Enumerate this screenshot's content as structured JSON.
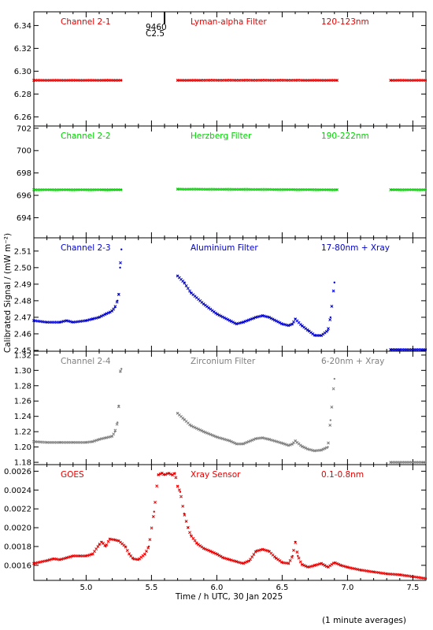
{
  "colors": {
    "red": "#e60000",
    "green": "#00d000",
    "blue": "#0000cc",
    "gray": "#808080",
    "axis": "#000000"
  },
  "figure": {
    "ylabel": "Calibrated Signal / (mW m⁻²)",
    "xlabel": "Time / h UTC, 30 Jan 2025",
    "footnote": "(1 minute averages)",
    "flare_label_1": "9460",
    "flare_label_2": "C2.5"
  },
  "chart_data": [
    {
      "type": "scatter",
      "color": "red",
      "labels": [
        "Channel 2-1",
        "Lyman-alpha Filter",
        "120-123nm"
      ],
      "xlim": [
        4.6,
        7.6
      ],
      "ylim": [
        6.252,
        6.352
      ],
      "yticks": [
        6.26,
        6.28,
        6.3,
        6.32,
        6.34
      ],
      "ytick_labels": [
        "6.26",
        "6.28",
        "6.30",
        "6.32",
        "6.34"
      ],
      "segments": [
        {
          "x": [
            4.6,
            5.27
          ],
          "y": [
            6.292,
            6.292
          ]
        },
        {
          "x": [
            5.7,
            6.92
          ],
          "y": [
            6.292,
            6.292
          ]
        },
        {
          "x": [
            7.33,
            7.6
          ],
          "y": [
            6.292,
            6.292
          ]
        }
      ]
    },
    {
      "type": "scatter",
      "color": "green",
      "labels": [
        "Channel 2-2",
        "Herzberg Filter",
        "190-222nm"
      ],
      "xlim": [
        4.6,
        7.6
      ],
      "ylim": [
        692.2,
        702.2
      ],
      "yticks": [
        694,
        696,
        698,
        700,
        702
      ],
      "ytick_labels": [
        "694",
        "696",
        "698",
        "700",
        "702"
      ],
      "segments": [
        {
          "x": [
            4.6,
            5.27
          ],
          "y": [
            696.5,
            696.5
          ]
        },
        {
          "x": [
            5.7,
            6.92
          ],
          "y": [
            696.55,
            696.5
          ]
        },
        {
          "x": [
            7.33,
            7.6
          ],
          "y": [
            696.5,
            696.5
          ]
        }
      ]
    },
    {
      "type": "scatter",
      "color": "blue",
      "labels": [
        "Channel 2-3",
        "Aluminium Filter",
        "17-80nm + Xray"
      ],
      "xlim": [
        4.6,
        7.6
      ],
      "ylim": [
        2.4495,
        2.518
      ],
      "yticks": [
        2.45,
        2.46,
        2.47,
        2.48,
        2.49,
        2.5,
        2.51
      ],
      "ytick_labels": [
        "2.45",
        "2.46",
        "2.47",
        "2.48",
        "2.49",
        "2.50",
        "2.51"
      ],
      "segments": [
        {
          "x": [
            4.6,
            4.7,
            4.8,
            4.85,
            4.9,
            5.0,
            5.05,
            5.1,
            5.15,
            5.18,
            5.2,
            5.22,
            5.24,
            5.25,
            5.26,
            5.27
          ],
          "y": [
            2.468,
            2.467,
            2.467,
            2.468,
            2.467,
            2.468,
            2.469,
            2.47,
            2.472,
            2.473,
            2.474,
            2.476,
            2.48,
            2.484,
            2.5,
            2.511
          ]
        },
        {
          "x": [
            5.7,
            5.75,
            5.8,
            5.9,
            6.0,
            6.1,
            6.15,
            6.2,
            6.3,
            6.35,
            6.4,
            6.5,
            6.55,
            6.58,
            6.6,
            6.65,
            6.7,
            6.75,
            6.8,
            6.85,
            6.87,
            6.9
          ],
          "y": [
            2.495,
            2.491,
            2.485,
            2.478,
            2.472,
            2.468,
            2.466,
            2.467,
            2.47,
            2.471,
            2.47,
            2.466,
            2.465,
            2.466,
            2.469,
            2.465,
            2.462,
            2.459,
            2.459,
            2.462,
            2.47,
            2.491
          ]
        },
        {
          "x": [
            7.33,
            7.6
          ],
          "y": [
            2.4505,
            2.4505
          ]
        }
      ]
    },
    {
      "type": "scatter",
      "color": "gray",
      "labels": [
        "Channel 2-4",
        "Zirconium Filter",
        "6-20nm + Xray"
      ],
      "xlim": [
        4.6,
        7.6
      ],
      "ylim": [
        1.177,
        1.325
      ],
      "yticks": [
        1.18,
        1.2,
        1.22,
        1.24,
        1.26,
        1.28,
        1.3,
        1.32
      ],
      "ytick_labels": [
        "1.18",
        "1.20",
        "1.22",
        "1.24",
        "1.26",
        "1.28",
        "1.30",
        "1.32"
      ],
      "segments": [
        {
          "x": [
            4.6,
            4.7,
            4.8,
            4.9,
            5.0,
            5.05,
            5.1,
            5.15,
            5.2,
            5.22,
            5.24,
            5.25,
            5.26,
            5.27
          ],
          "y": [
            1.207,
            1.206,
            1.206,
            1.206,
            1.206,
            1.207,
            1.21,
            1.212,
            1.214,
            1.22,
            1.232,
            1.254,
            1.298,
            1.302
          ]
        },
        {
          "x": [
            5.7,
            5.75,
            5.8,
            5.9,
            6.0,
            6.1,
            6.15,
            6.2,
            6.3,
            6.35,
            6.4,
            6.5,
            6.55,
            6.58,
            6.6,
            6.65,
            6.7,
            6.75,
            6.8,
            6.85,
            6.87,
            6.9
          ],
          "y": [
            1.244,
            1.236,
            1.228,
            1.22,
            1.213,
            1.208,
            1.204,
            1.204,
            1.211,
            1.212,
            1.21,
            1.205,
            1.202,
            1.204,
            1.208,
            1.201,
            1.197,
            1.195,
            1.196,
            1.2,
            1.235,
            1.289
          ]
        },
        {
          "x": [
            7.33,
            7.6
          ],
          "y": [
            1.18,
            1.18
          ]
        }
      ]
    },
    {
      "type": "scatter",
      "color": "red",
      "labels": [
        "GOES",
        "Xray Sensor",
        "0.1-0.8nm"
      ],
      "xlim": [
        4.6,
        7.6
      ],
      "ylim": [
        0.00144,
        0.00267
      ],
      "yticks": [
        0.0016,
        0.0018,
        0.002,
        0.0022,
        0.0024,
        0.0026
      ],
      "ytick_labels": [
        "0.0016",
        "0.0018",
        "0.0020",
        "0.0022",
        "0.0024",
        "0.0026"
      ],
      "xticks": [
        5.0,
        5.5,
        6.0,
        6.5,
        7.0,
        7.5
      ],
      "xtick_labels": [
        "5.0",
        "5.5",
        "6.0",
        "6.5",
        "7.0",
        "7.5"
      ],
      "segments": [
        {
          "x": [
            4.6,
            4.7,
            4.75,
            4.8,
            4.85,
            4.9,
            4.95,
            5.0,
            5.05,
            5.1,
            5.12,
            5.15,
            5.18,
            5.22,
            5.25,
            5.3,
            5.33,
            5.36,
            5.4,
            5.45,
            5.48,
            5.52,
            5.55,
            5.58,
            5.6,
            5.63,
            5.66,
            5.68,
            5.7,
            5.72,
            5.75,
            5.78,
            5.8,
            5.85,
            5.9,
            5.95,
            6.0,
            6.05,
            6.1,
            6.15,
            6.2,
            6.25,
            6.3,
            6.35,
            6.4,
            6.45,
            6.5,
            6.55,
            6.58,
            6.6,
            6.62,
            6.65,
            6.7,
            6.75,
            6.8,
            6.85,
            6.9,
            6.95,
            7.0,
            7.1,
            7.2,
            7.3,
            7.4,
            7.5,
            7.6
          ],
          "y": [
            0.00162,
            0.00165,
            0.00167,
            0.00166,
            0.00168,
            0.0017,
            0.0017,
            0.0017,
            0.00172,
            0.00182,
            0.00185,
            0.0018,
            0.00188,
            0.00187,
            0.00186,
            0.0018,
            0.00172,
            0.00167,
            0.00166,
            0.00172,
            0.0018,
            0.00217,
            0.00256,
            0.00258,
            0.00256,
            0.00258,
            0.00256,
            0.00258,
            0.00244,
            0.00238,
            0.00215,
            0.002,
            0.00192,
            0.00183,
            0.00178,
            0.00175,
            0.00172,
            0.00168,
            0.00166,
            0.00164,
            0.00162,
            0.00165,
            0.00175,
            0.00177,
            0.00175,
            0.00168,
            0.00163,
            0.00162,
            0.0017,
            0.00185,
            0.0017,
            0.00161,
            0.00158,
            0.0016,
            0.00162,
            0.00158,
            0.00163,
            0.0016,
            0.00158,
            0.00155,
            0.00153,
            0.00151,
            0.0015,
            0.00148,
            0.00146
          ]
        }
      ]
    }
  ]
}
